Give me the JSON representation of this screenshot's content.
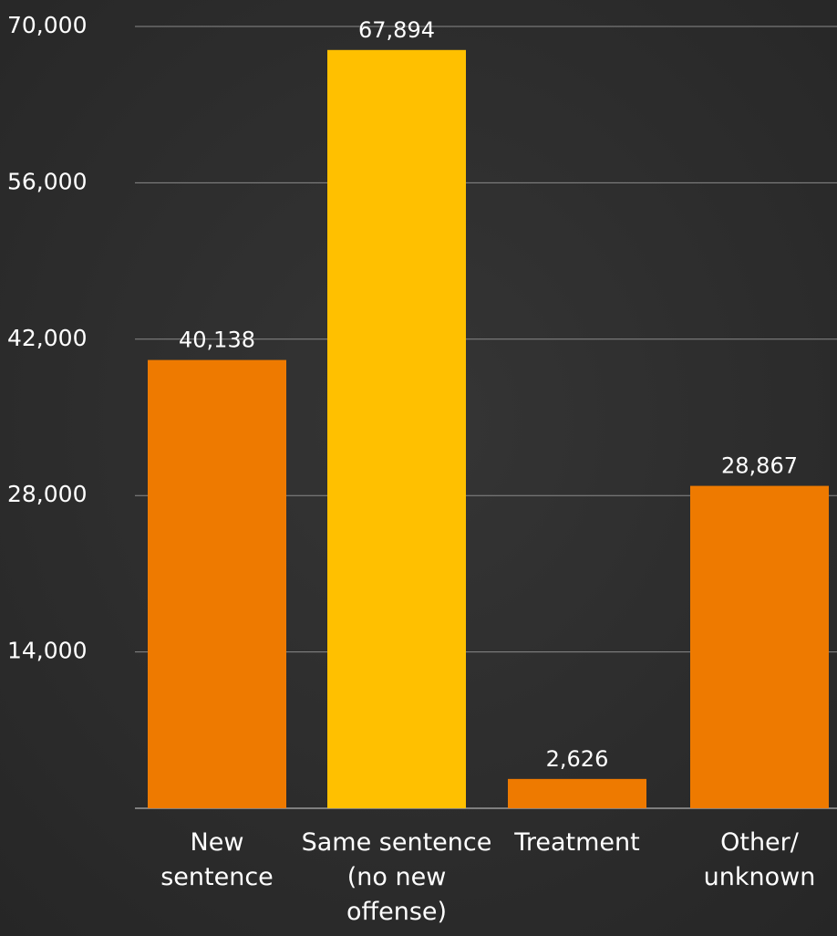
{
  "chart_data": {
    "type": "bar",
    "categories": [
      [
        "New",
        "sentence"
      ],
      [
        "Same sentence",
        "(no new",
        "offense)"
      ],
      [
        "Treatment"
      ],
      [
        "Other/",
        "unknown"
      ]
    ],
    "values": [
      40138,
      67894,
      2626,
      28867
    ],
    "data_labels": [
      "40,138",
      "67,894",
      "2,626",
      "28,867"
    ],
    "bar_colors": [
      "#ee7a00",
      "#ffc000",
      "#ee7a00",
      "#ee7a00"
    ],
    "ylim": [
      0,
      70000
    ],
    "yticks": [
      14000,
      28000,
      42000,
      56000,
      70000
    ],
    "ytick_labels": [
      "14,000",
      "28,000",
      "42,000",
      "56,000",
      "70,000"
    ],
    "grid": true,
    "background": "#2f2f2f",
    "text_color": "#ffffff"
  }
}
